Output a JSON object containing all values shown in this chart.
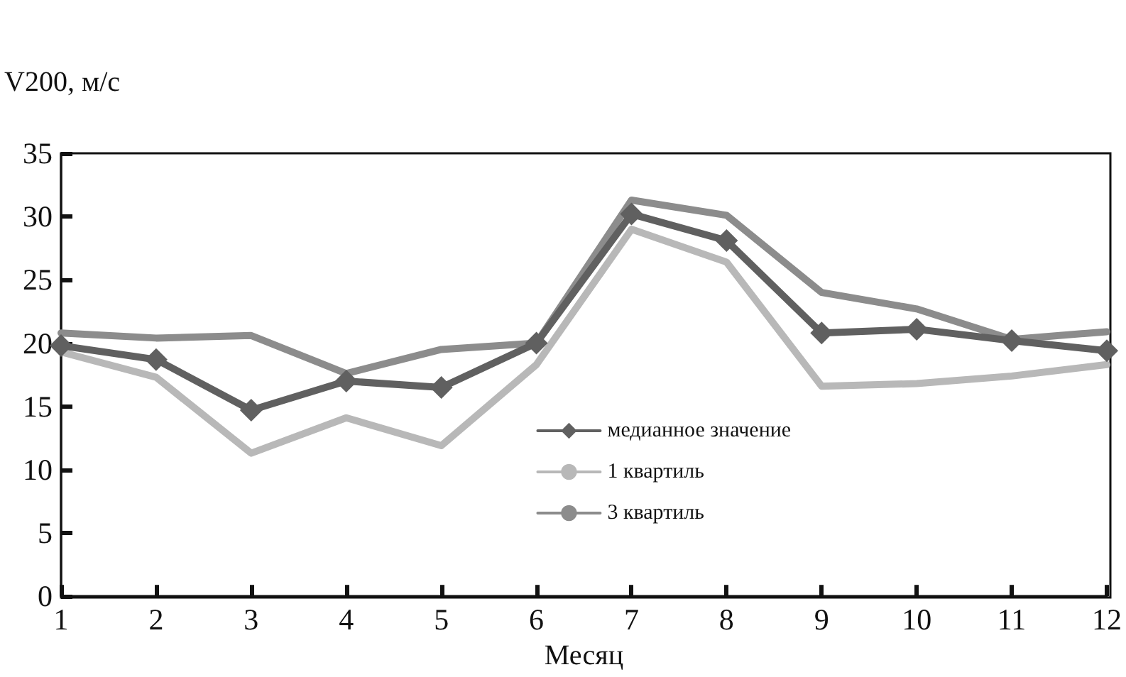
{
  "chart_data": {
    "type": "line",
    "xlabel": "Месяц",
    "ylabel": "V200, м/с",
    "x": [
      1,
      2,
      3,
      4,
      5,
      6,
      7,
      8,
      9,
      10,
      11,
      12
    ],
    "xlim": [
      1,
      12
    ],
    "xticks": [
      1,
      2,
      3,
      4,
      5,
      6,
      7,
      8,
      9,
      10,
      11,
      12
    ],
    "ylim": [
      0,
      35
    ],
    "yticks": [
      0,
      5,
      10,
      15,
      20,
      25,
      30,
      35
    ],
    "grid": false,
    "legend": "bottom",
    "series": [
      {
        "name": "медианное значение",
        "color": "#606060",
        "marker": "diamond",
        "values": [
          19.8,
          18.7,
          14.7,
          17.0,
          16.5,
          20.0,
          30.2,
          28.1,
          20.8,
          21.1,
          20.2,
          19.4
        ]
      },
      {
        "name": "1 квартиль",
        "color": "#b8b8b8",
        "marker": "none",
        "values": [
          19.3,
          17.3,
          11.3,
          14.1,
          11.9,
          18.3,
          29.0,
          26.4,
          16.6,
          16.8,
          17.4,
          18.3
        ]
      },
      {
        "name": "3 квартиль",
        "color": "#8c8c8c",
        "marker": "none",
        "values": [
          20.8,
          20.4,
          20.6,
          17.6,
          19.5,
          20.0,
          31.3,
          30.1,
          24.0,
          22.7,
          20.3,
          20.9
        ]
      }
    ]
  }
}
